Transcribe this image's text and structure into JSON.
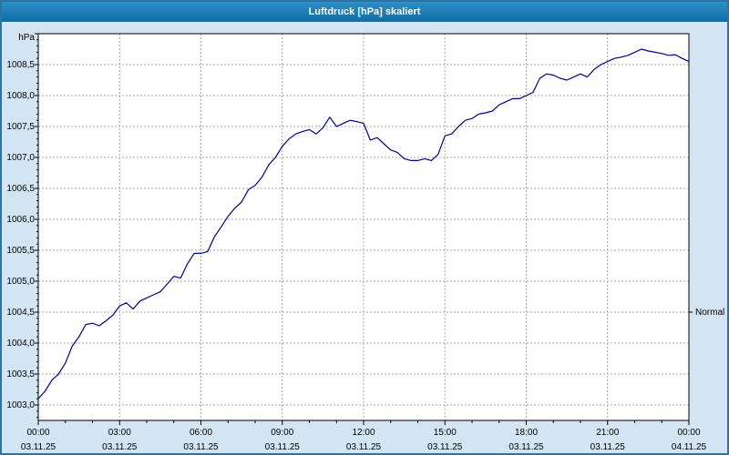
{
  "window": {
    "title": "Luftdruck [hPa] skaliert"
  },
  "chart_data": {
    "type": "line",
    "title": "Luftdruck [hPa] skaliert",
    "xlabel": "",
    "ylabel": "hPa",
    "xlim": [
      0,
      24
    ],
    "ylim": [
      1002.75,
      1009.0
    ],
    "grid": true,
    "legend_position": "none",
    "y_ticks": [
      1003.0,
      1003.5,
      1004.0,
      1004.5,
      1005.0,
      1005.5,
      1006.0,
      1006.5,
      1007.0,
      1007.5,
      1008.0,
      1008.5
    ],
    "grid_hours": [
      3,
      6,
      9,
      12,
      15,
      18,
      21
    ],
    "x_ticks": [
      {
        "hour": 0,
        "time": "00:00",
        "date": "03.11.25"
      },
      {
        "hour": 3,
        "time": "03:00",
        "date": "03.11.25"
      },
      {
        "hour": 6,
        "time": "06:00",
        "date": "03.11.25"
      },
      {
        "hour": 9,
        "time": "09:00",
        "date": "03.11.25"
      },
      {
        "hour": 12,
        "time": "12:00",
        "date": "03.11.25"
      },
      {
        "hour": 15,
        "time": "15:00",
        "date": "03.11.25"
      },
      {
        "hour": 18,
        "time": "18:00",
        "date": "03.11.25"
      },
      {
        "hour": 21,
        "time": "21:00",
        "date": "03.11.25"
      },
      {
        "hour": 24,
        "time": "00:00",
        "date": "04.11.25"
      }
    ],
    "annotations": [
      {
        "label": "Normal",
        "y": 1004.5
      }
    ],
    "series": [
      {
        "name": "Luftdruck",
        "x_start": 0,
        "x_step_hours": 0.25,
        "values": [
          1003.1,
          1003.22,
          1003.4,
          1003.5,
          1003.68,
          1003.95,
          1004.1,
          1004.3,
          1004.32,
          1004.28,
          1004.36,
          1004.45,
          1004.6,
          1004.65,
          1004.55,
          1004.68,
          1004.73,
          1004.78,
          1004.83,
          1004.95,
          1005.08,
          1005.05,
          1005.28,
          1005.45,
          1005.45,
          1005.48,
          1005.72,
          1005.88,
          1006.05,
          1006.18,
          1006.28,
          1006.48,
          1006.55,
          1006.68,
          1006.88,
          1007.0,
          1007.18,
          1007.3,
          1007.38,
          1007.42,
          1007.45,
          1007.38,
          1007.48,
          1007.65,
          1007.5,
          1007.55,
          1007.6,
          1007.58,
          1007.55,
          1007.28,
          1007.32,
          1007.22,
          1007.12,
          1007.08,
          1006.98,
          1006.95,
          1006.95,
          1006.98,
          1006.95,
          1007.05,
          1007.35,
          1007.38,
          1007.5,
          1007.6,
          1007.63,
          1007.7,
          1007.72,
          1007.75,
          1007.85,
          1007.9,
          1007.95,
          1007.95,
          1008.0,
          1008.05,
          1008.28,
          1008.35,
          1008.33,
          1008.28,
          1008.25,
          1008.3,
          1008.35,
          1008.3,
          1008.42,
          1008.5,
          1008.55,
          1008.6,
          1008.62,
          1008.65,
          1008.7,
          1008.75,
          1008.72,
          1008.7,
          1008.68,
          1008.65,
          1008.66,
          1008.6,
          1008.55
        ]
      }
    ],
    "colors": {
      "line": "#0000a0",
      "grid": "#a8a8a8",
      "plot_border": "#000000",
      "background": "#ffffff",
      "frame": "#d3e5f3",
      "titlebar": "#1878b4",
      "text": "#000000"
    }
  }
}
